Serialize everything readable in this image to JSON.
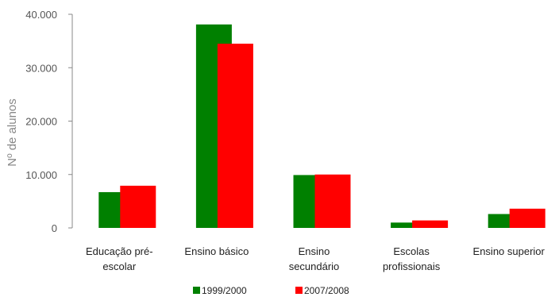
{
  "chart_data": {
    "type": "bar",
    "title": "",
    "xlabel": "",
    "ylabel": "Nº de alunos",
    "ylim": [
      0,
      40000
    ],
    "yticks": [
      "0",
      "10.000",
      "20.000",
      "30.000",
      "40.000"
    ],
    "ytick_values": [
      0,
      10000,
      20000,
      30000,
      40000
    ],
    "grid": false,
    "legend_position": "bottom",
    "categories": [
      [
        "Educação pré-",
        "escolar"
      ],
      [
        "Ensino básico"
      ],
      [
        "Ensino",
        "secundário"
      ],
      [
        "Escolas",
        "profissionais"
      ],
      [
        "Ensino superior"
      ]
    ],
    "series": [
      {
        "name": "1999/2000",
        "color": "#008000",
        "values": [
          6700,
          38100,
          9900,
          1000,
          2600
        ]
      },
      {
        "name": "2007/2008",
        "color": "#ff0000",
        "values": [
          7900,
          34500,
          10000,
          1400,
          3600
        ]
      }
    ]
  }
}
